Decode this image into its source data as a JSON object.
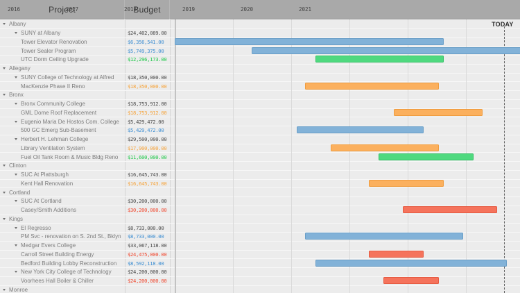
{
  "header": {
    "project_label": "Project",
    "budget_label": "Budget"
  },
  "timeline": {
    "years": [
      "2016",
      "2017",
      "2018",
      "2019",
      "2020",
      "2021"
    ],
    "start_year": 2016,
    "today": {
      "label": "TODAY",
      "year": 2021.65
    }
  },
  "palette": {
    "blue": {
      "bar": "#82b2d8",
      "bar_border": "#699ec7",
      "text": "#3f8fd2"
    },
    "green": {
      "bar": "#4fd97f",
      "bar_border": "#34c065",
      "text": "#1fc94a"
    },
    "orange": {
      "bar": "#fbb05e",
      "bar_border": "#ef9c3e",
      "text": "#f6a43c"
    },
    "red": {
      "bar": "#f5735c",
      "bar_border": "#e55a41",
      "text": "#f14b32"
    },
    "dark": {
      "text": "#4c4c4c"
    }
  },
  "chart_data": {
    "type": "bar",
    "subtype": "gantt",
    "title": "",
    "xlabel": "Year",
    "x_range": [
      2016,
      2022
    ],
    "legend": "none",
    "grid": "vertical-years",
    "rows": [
      {
        "level": 0,
        "name": "Albany",
        "budget": "",
        "budget_color": "dark",
        "caret": true
      },
      {
        "level": 1,
        "name": "SUNY at Albany",
        "budget": "$24,402,089.00",
        "budget_color": "dark",
        "caret": true
      },
      {
        "level": 2,
        "name": "Tower Elevator Renovation",
        "budget": "$6,356,541.00",
        "budget_color": "blue",
        "bar": {
          "start": 2016.0,
          "end": 2020.6,
          "color": "blue"
        }
      },
      {
        "level": 2,
        "name": "Tower Sealer Program",
        "budget": "$5,749,375.00",
        "budget_color": "blue",
        "bar": {
          "start": 2017.32,
          "end": 2022.1,
          "color": "blue"
        }
      },
      {
        "level": 2,
        "name": "UTC Dorm Ceiling Upgrade",
        "budget": "$12,296,173.00",
        "budget_color": "green",
        "bar": {
          "start": 2018.42,
          "end": 2020.6,
          "color": "green"
        }
      },
      {
        "level": 0,
        "name": "Allegany",
        "budget": "",
        "budget_color": "dark",
        "caret": true
      },
      {
        "level": 1,
        "name": "SUNY College of Technology at Alfred",
        "budget": "$18,350,000.00",
        "budget_color": "dark",
        "caret": true
      },
      {
        "level": 2,
        "name": "MacKenzie Phase II Reno",
        "budget": "$18,350,000.00",
        "budget_color": "orange",
        "bar": {
          "start": 2018.24,
          "end": 2020.51,
          "color": "orange"
        }
      },
      {
        "level": 0,
        "name": "Bronx",
        "budget": "",
        "budget_color": "dark",
        "caret": true
      },
      {
        "level": 1,
        "name": "Bronx Community College",
        "budget": "$18,753,912.00",
        "budget_color": "dark",
        "caret": true
      },
      {
        "level": 2,
        "name": "GML Dome Roof Replacement",
        "budget": "$18,753,912.00",
        "budget_color": "orange",
        "bar": {
          "start": 2019.76,
          "end": 2021.26,
          "color": "orange"
        }
      },
      {
        "level": 1,
        "name": "Eugenio Maria De Hostos Com. College",
        "budget": "$5,429,472.00",
        "budget_color": "dark",
        "caret": true
      },
      {
        "level": 2,
        "name": "500 GC Emerg Sub-Basement",
        "budget": "$5,429,472.00",
        "budget_color": "blue",
        "bar": {
          "start": 2018.1,
          "end": 2020.25,
          "color": "blue"
        }
      },
      {
        "level": 1,
        "name": "Herbert H. Lehman College",
        "budget": "$29,500,000.00",
        "budget_color": "dark",
        "caret": true
      },
      {
        "level": 2,
        "name": "Library Ventilation System",
        "budget": "$17,900,000.00",
        "budget_color": "orange",
        "bar": {
          "start": 2018.68,
          "end": 2020.51,
          "color": "orange"
        }
      },
      {
        "level": 2,
        "name": "Fuel Oil Tank Room & Music Bldg Reno",
        "budget": "$11,600,000.00",
        "budget_color": "green",
        "bar": {
          "start": 2019.5,
          "end": 2021.11,
          "color": "green"
        }
      },
      {
        "level": 0,
        "name": "Clinton",
        "budget": "",
        "budget_color": "dark",
        "caret": true
      },
      {
        "level": 1,
        "name": "SUC At Plattsburgh",
        "budget": "$16,645,743.00",
        "budget_color": "dark",
        "caret": true
      },
      {
        "level": 2,
        "name": "Kent Hall Renovation",
        "budget": "$16,645,743.00",
        "budget_color": "orange",
        "bar": {
          "start": 2019.33,
          "end": 2020.6,
          "color": "orange"
        }
      },
      {
        "level": 0,
        "name": "Cortland",
        "budget": "",
        "budget_color": "dark",
        "caret": true
      },
      {
        "level": 1,
        "name": "SUC At Cortland",
        "budget": "$30,200,000.00",
        "budget_color": "dark",
        "caret": true
      },
      {
        "level": 2,
        "name": "Casey/Smith Additions",
        "budget": "$30,200,000.00",
        "budget_color": "red",
        "bar": {
          "start": 2019.92,
          "end": 2021.51,
          "color": "red"
        }
      },
      {
        "level": 0,
        "name": "Kings",
        "budget": "",
        "budget_color": "dark",
        "caret": true
      },
      {
        "level": 1,
        "name": "El Regresso",
        "budget": "$8,733,000.00",
        "budget_color": "dark",
        "caret": true
      },
      {
        "level": 2,
        "name": "PM Svc - renovation on S. 2nd St., Bklyn",
        "budget": "$8,733,000.00",
        "budget_color": "blue",
        "bar": {
          "start": 2018.24,
          "end": 2020.93,
          "color": "blue"
        }
      },
      {
        "level": 1,
        "name": "Medgar Evers College",
        "budget": "$33,067,118.00",
        "budget_color": "dark",
        "caret": true
      },
      {
        "level": 2,
        "name": "Carroll Street Building Energy",
        "budget": "$24,475,000.00",
        "budget_color": "red",
        "bar": {
          "start": 2019.33,
          "end": 2020.25,
          "color": "red"
        }
      },
      {
        "level": 2,
        "name": "Bedford Building Lobby Reconstruction",
        "budget": "$8,592,118.00",
        "budget_color": "blue",
        "bar": {
          "start": 2018.42,
          "end": 2021.68,
          "color": "blue"
        }
      },
      {
        "level": 1,
        "name": "New York City College of Technology",
        "budget": "$24,200,000.00",
        "budget_color": "dark",
        "caret": true
      },
      {
        "level": 2,
        "name": "Voorhees Hall Boiler & Chiller",
        "budget": "$24,200,000.00",
        "budget_color": "red",
        "bar": {
          "start": 2019.58,
          "end": 2020.51,
          "color": "red"
        }
      },
      {
        "level": 0,
        "name": "Monroe",
        "budget": "",
        "budget_color": "dark",
        "caret": true
      }
    ]
  }
}
